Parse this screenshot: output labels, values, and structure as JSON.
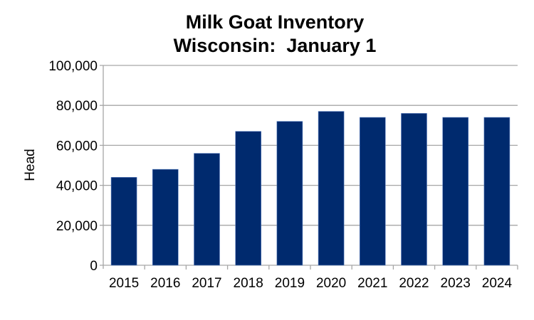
{
  "chart_data": {
    "type": "bar",
    "title": "Milk Goat Inventory",
    "subtitle": "Wisconsin:  January 1",
    "xlabel": "",
    "ylabel": "Head",
    "categories": [
      "2015",
      "2016",
      "2017",
      "2018",
      "2019",
      "2020",
      "2021",
      "2022",
      "2023",
      "2024"
    ],
    "values": [
      44000,
      48000,
      56000,
      67000,
      72000,
      77000,
      74000,
      76000,
      74000,
      74000
    ],
    "ylim": [
      0,
      100000
    ],
    "yticks": [
      "0",
      "20,000",
      "40,000",
      "60,000",
      "80,000",
      "100,000"
    ],
    "grid": true,
    "legend": "none",
    "bar_color": "#002a6e"
  }
}
